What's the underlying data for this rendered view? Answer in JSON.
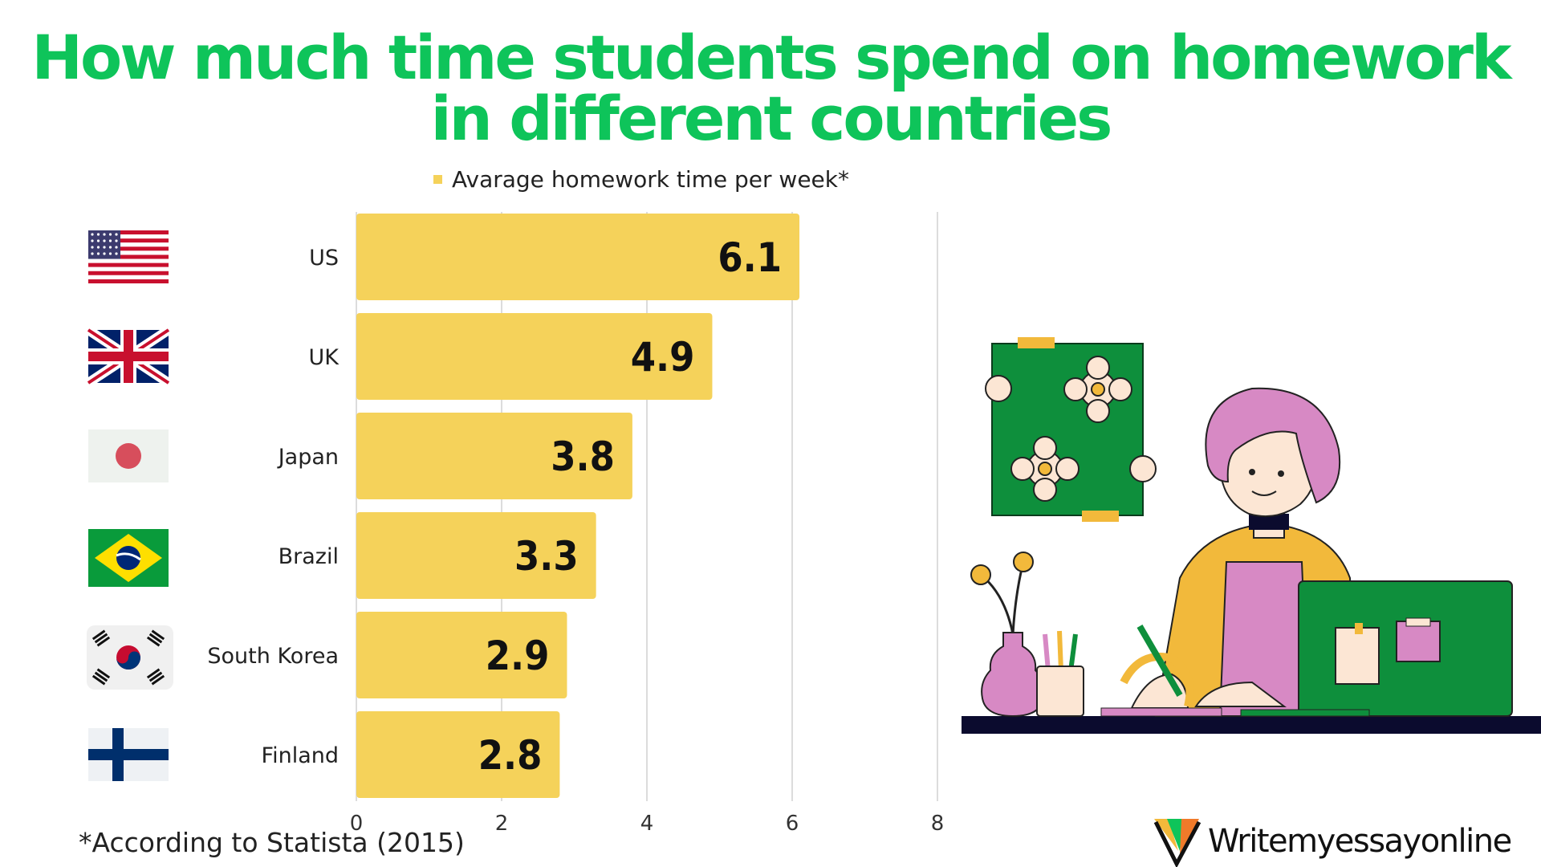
{
  "title_lines": [
    "How much time students spend on homework",
    "in different countries"
  ],
  "footnote": "*According to Statista (2015)",
  "brand": {
    "name": "Writemyessayonline"
  },
  "colors": {
    "title": "#0ec45a",
    "bar": "#f5d25a",
    "grid": "#dcdcdc"
  },
  "chart_data": {
    "type": "bar",
    "orientation": "horizontal",
    "title": "How much time students spend on homework in different countries",
    "categories": [
      "US",
      "UK",
      "Japan",
      "Brazil",
      "South Korea",
      "Finland"
    ],
    "series": [
      {
        "name": "Avarage homework time per week*",
        "values": [
          6.1,
          4.9,
          3.8,
          3.3,
          2.9,
          2.8
        ]
      }
    ],
    "xlim": [
      0,
      8
    ],
    "xticks": [
      0,
      2,
      4,
      6,
      8
    ],
    "grid": true,
    "legend": "top",
    "data_labels": true,
    "flag_icons": [
      "us-flag-icon",
      "uk-flag-icon",
      "japan-flag-icon",
      "brazil-flag-icon",
      "south-korea-flag-icon",
      "finland-flag-icon"
    ]
  }
}
